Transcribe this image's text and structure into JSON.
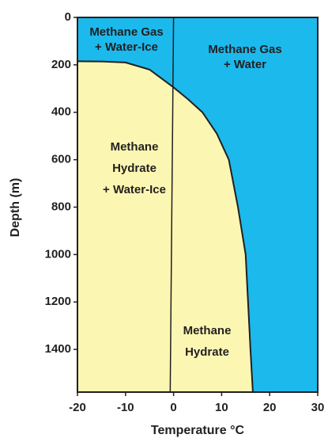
{
  "chart_data": {
    "type": "phase-diagram",
    "xlabel": "Temperature °C",
    "ylabel": "Depth (m)",
    "xlim": [
      -20,
      30
    ],
    "xticks": [
      -20,
      -10,
      0,
      10,
      20,
      30
    ],
    "ylim": [
      0,
      1580
    ],
    "yticks": [
      0,
      200,
      400,
      600,
      800,
      1000,
      1200,
      1400
    ],
    "y_inverted": true,
    "background_color": "#1cb9ec",
    "region_color": "#fbf7b2",
    "curves": [
      {
        "x": [
          -20,
          -15,
          -10,
          -5,
          0,
          3,
          6,
          9,
          11.5,
          13.4,
          15,
          16,
          16.5
        ],
        "y": [
          185,
          186,
          190,
          220,
          295,
          345,
          400,
          490,
          600,
          800,
          1000,
          1400,
          1580
        ]
      },
      {
        "x": [
          0,
          -0.7
        ],
        "y": [
          0,
          1580
        ]
      }
    ],
    "annotations": [
      [
        "Methane Gas",
        "+ Water-Ice"
      ],
      [
        "Methane Gas",
        "+ Water"
      ],
      [
        "Methane",
        "Hydrate",
        "+ Water-Ice"
      ],
      [
        "Methane",
        "Hydrate"
      ]
    ]
  }
}
